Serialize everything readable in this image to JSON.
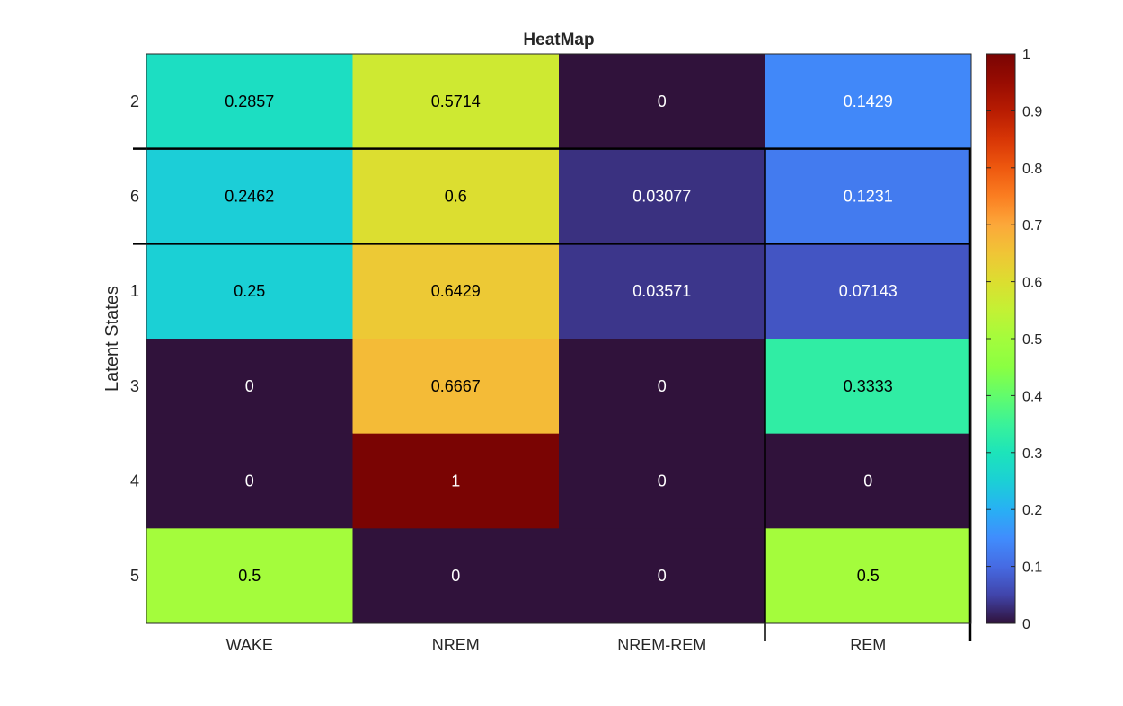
{
  "chart_data": {
    "type": "heatmap",
    "title": "HeatMap",
    "xlabel": "",
    "ylabel": "Latent States",
    "x_categories": [
      "WAKE",
      "NREM",
      "NREM-REM",
      "REM"
    ],
    "y_categories": [
      "2",
      "6",
      "1",
      "3",
      "4",
      "5"
    ],
    "values": [
      [
        0.2857,
        0.5714,
        0,
        0.1429
      ],
      [
        0.2462,
        0.6,
        0.03077,
        0.1231
      ],
      [
        0.25,
        0.6429,
        0.03571,
        0.07143
      ],
      [
        0,
        0.6667,
        0,
        0.3333
      ],
      [
        0,
        1,
        0,
        0
      ],
      [
        0.5,
        0,
        0,
        0.5
      ]
    ],
    "value_labels": [
      [
        "0.2857",
        "0.5714",
        "0",
        "0.1429"
      ],
      [
        "0.2462",
        "0.6",
        "0.03077",
        "0.1231"
      ],
      [
        "0.25",
        "0.6429",
        "0.03571",
        "0.07143"
      ],
      [
        "0",
        "0.6667",
        "0",
        "0.3333"
      ],
      [
        "0",
        "1",
        "0",
        "0"
      ],
      [
        "0.5",
        "0",
        "0",
        "0.5"
      ]
    ],
    "colormap": "turbo",
    "colorbar": {
      "range": [
        0,
        1
      ],
      "ticks": [
        0,
        0.1,
        0.2,
        0.3,
        0.4,
        0.5,
        0.6,
        0.7,
        0.8,
        0.9,
        1
      ],
      "tick_labels": [
        "0",
        "0.1",
        "0.2",
        "0.3",
        "0.4",
        "0.5",
        "0.6",
        "0.7",
        "0.8",
        "0.9",
        "1"
      ]
    },
    "colors": {
      "low": "#30123b",
      "high": "#7a0403",
      "text_dark": "#000000",
      "text_light": "#ffffff"
    }
  }
}
